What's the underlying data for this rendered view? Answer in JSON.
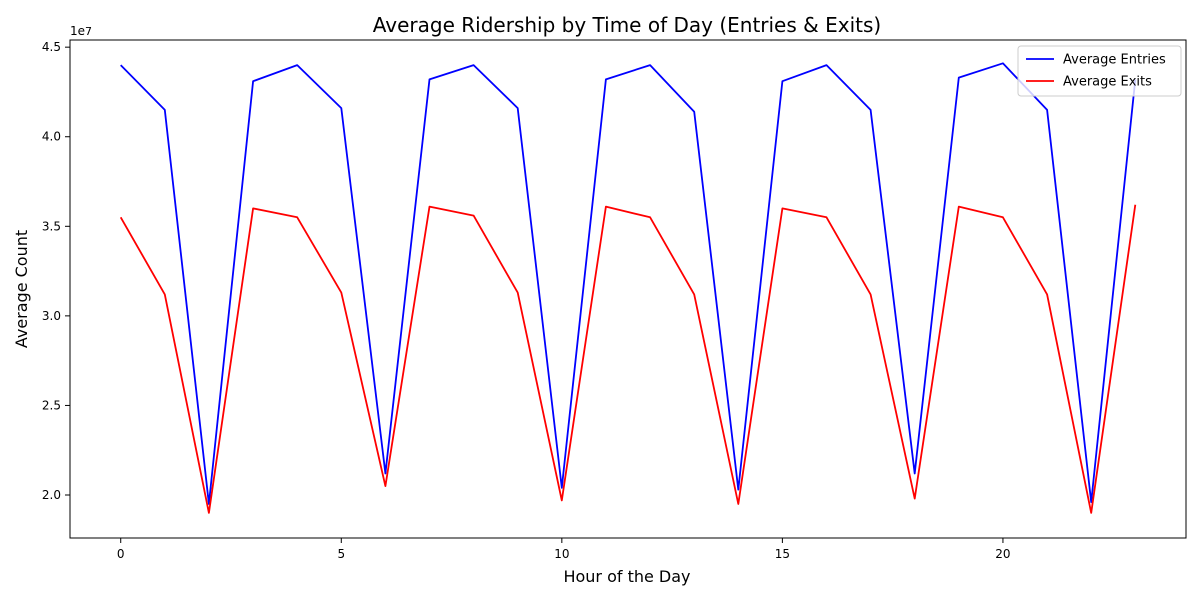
{
  "chart_data": {
    "type": "line",
    "title": "Average Ridership by Time of Day (Entries & Exits)",
    "xlabel": "Hour of the Day",
    "ylabel": "Average Count",
    "y_exponent_label": "1e7",
    "xlim": [
      -1.15,
      24.15
    ],
    "ylim": [
      17.6,
      45.4
    ],
    "x_ticks": [
      0,
      5,
      10,
      15,
      20
    ],
    "y_ticks": [
      20.0,
      25.0,
      30.0,
      35.0,
      40.0,
      45.0
    ],
    "y_tick_labels": [
      "2.0",
      "2.5",
      "3.0",
      "3.5",
      "4.0",
      "4.5"
    ],
    "legend_position": "top-right",
    "grid": false,
    "x": [
      0,
      1,
      2,
      3,
      4,
      5,
      6,
      7,
      8,
      9,
      10,
      11,
      12,
      13,
      14,
      15,
      16,
      17,
      18,
      19,
      20,
      21,
      22,
      23
    ],
    "series": [
      {
        "name": "Average Entries",
        "color": "#0000ff",
        "values": [
          44.0,
          41.5,
          19.5,
          43.1,
          44.0,
          41.6,
          21.2,
          43.2,
          44.0,
          41.6,
          20.4,
          43.2,
          44.0,
          41.4,
          20.3,
          43.1,
          44.0,
          41.5,
          21.2,
          43.3,
          44.1,
          41.5,
          19.6,
          43.2
        ]
      },
      {
        "name": "Average Exits",
        "color": "#ff0000",
        "values": [
          35.5,
          31.2,
          19.0,
          36.0,
          35.5,
          31.3,
          20.5,
          36.1,
          35.6,
          31.3,
          19.7,
          36.1,
          35.5,
          31.2,
          19.5,
          36.0,
          35.5,
          31.2,
          19.8,
          36.1,
          35.5,
          31.2,
          19.0,
          36.2
        ]
      }
    ]
  }
}
